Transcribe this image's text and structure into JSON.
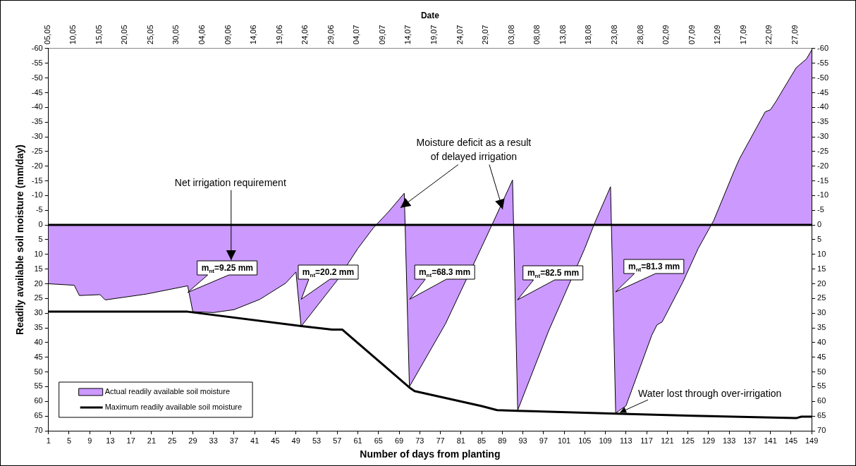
{
  "chart_data": {
    "type": "area",
    "xlabel": "Number of days from planting",
    "ylabel": "Readily available soil moisture (mm/day)",
    "x2label": "Date",
    "series": [
      {
        "name": "Actual readily available soil moisture",
        "color": "#cc99ff",
        "x": [
          1,
          6,
          7,
          11,
          12,
          20,
          28,
          29,
          33,
          37,
          42,
          47,
          49,
          50,
          57,
          61,
          64,
          67,
          70,
          71,
          78,
          81,
          85,
          87,
          91,
          92,
          98,
          101,
          105,
          107,
          110,
          111,
          113,
          118,
          119,
          120,
          124,
          127,
          130,
          134,
          135,
          140,
          141,
          142,
          146,
          148,
          149
        ],
        "values": [
          20,
          20.5,
          24,
          23.7,
          25.5,
          23.5,
          20.7,
          29.5,
          29.8,
          28.8,
          25.3,
          19.8,
          16,
          34.5,
          18.8,
          8,
          1,
          -4.6,
          -10.8,
          55,
          33.6,
          22.4,
          7.5,
          0,
          -15.3,
          63,
          36,
          24,
          8,
          -1,
          -13,
          64,
          61.5,
          37.5,
          34,
          33,
          19.5,
          8,
          -1.5,
          -18.5,
          -22.5,
          -38.5,
          -39.2,
          -41.8,
          -53.5,
          -56.5,
          -59.5
        ]
      },
      {
        "name": "Maximum readily available soil moisture",
        "type": "line",
        "color": "#000000",
        "x": [
          1,
          28,
          50,
          56,
          58,
          71,
          72,
          85,
          88,
          92,
          111,
          126,
          146,
          147,
          149
        ],
        "values": [
          29.5,
          29.5,
          34.4,
          35.6,
          35.6,
          55.3,
          56.5,
          61.6,
          63,
          63.2,
          64.2,
          64.9,
          65.7,
          65.2,
          65.2
        ]
      }
    ],
    "xlim": [
      1,
      149
    ],
    "xticks": [
      1,
      5,
      9,
      13,
      17,
      21,
      25,
      29,
      33,
      37,
      41,
      45,
      49,
      53,
      57,
      61,
      65,
      69,
      73,
      77,
      81,
      85,
      89,
      93,
      97,
      101,
      105,
      109,
      113,
      117,
      121,
      125,
      129,
      133,
      137,
      141,
      145,
      149
    ],
    "x2lim": [
      "--05-05",
      "--09-30"
    ],
    "x2ticks": [
      {
        "value": "--05-05",
        "label": "05,05"
      },
      {
        "value": "--05-10",
        "label": "10,05"
      },
      {
        "value": "--05-15",
        "label": "15,05"
      },
      {
        "value": "--05-20",
        "label": "20,05"
      },
      {
        "value": "--05-25",
        "label": "25,05"
      },
      {
        "value": "--05-30",
        "label": "30,05"
      },
      {
        "value": "--06-04",
        "label": "04,06"
      },
      {
        "value": "--06-09",
        "label": "09,06"
      },
      {
        "value": "--06-14",
        "label": "14,06"
      },
      {
        "value": "--06-19",
        "label": "19,06"
      },
      {
        "value": "--06-24",
        "label": "24,06"
      },
      {
        "value": "--06-29",
        "label": "29,06"
      },
      {
        "value": "--07-04",
        "label": "04,07"
      },
      {
        "value": "--07-09",
        "label": "09,07"
      },
      {
        "value": "--07-14",
        "label": "14,07"
      },
      {
        "value": "--07-19",
        "label": "19,07"
      },
      {
        "value": "--07-24",
        "label": "24,07"
      },
      {
        "value": "--07-29",
        "label": "29,07"
      },
      {
        "value": "--08-03",
        "label": "03,08"
      },
      {
        "value": "--08-08",
        "label": "08,08"
      },
      {
        "value": "--08-13",
        "label": "13,08"
      },
      {
        "value": "--08-18",
        "label": "18,08"
      },
      {
        "value": "--08-23",
        "label": "23,08"
      },
      {
        "value": "--08-28",
        "label": "28,08"
      },
      {
        "value": "--09-02",
        "label": "02,09"
      },
      {
        "value": "--09-07",
        "label": "07,09"
      },
      {
        "value": "--09-12",
        "label": "12,09"
      },
      {
        "value": "--09-17",
        "label": "17,09"
      },
      {
        "value": "--09-22",
        "label": "22,09"
      },
      {
        "value": "--09-27",
        "label": "27,09"
      }
    ],
    "ylim": [
      70,
      -60
    ],
    "yticks": [
      -60,
      -55,
      -50,
      -45,
      -40,
      -35,
      -30,
      -25,
      -20,
      -15,
      -10,
      -5,
      0,
      5,
      10,
      15,
      20,
      25,
      30,
      35,
      40,
      45,
      50,
      55,
      60,
      65,
      70
    ],
    "y2lim": [
      70,
      -60
    ],
    "y2ticks": [
      -60,
      -55,
      -50,
      -45,
      -40,
      -35,
      -30,
      -25,
      -20,
      -15,
      -10,
      -5,
      0,
      5,
      10,
      15,
      20,
      25,
      30,
      35,
      40,
      45,
      50,
      55,
      60,
      65,
      70
    ],
    "ref_lines": [
      {
        "axis": "y",
        "value": 0,
        "color": "#000000"
      }
    ],
    "legend": "bottom left",
    "annotations": [
      "Net irrigation requirement",
      "Moisture deficit as a result\nof delayed irrigation",
      {
        "text": "m$_{nt}$=9.25 mm",
        "x": 28,
        "y": 23
      },
      {
        "text": "m$_{nt}$=20.2 mm",
        "x": 50,
        "y": 25.3
      },
      {
        "text": "m$_{nt}$=68.3 mm",
        "x": 71,
        "y": 25.3
      },
      {
        "text": "m$_{nt}$=82.5 mm",
        "x": 92,
        "y": 25.5
      },
      {
        "text": "m$_{nt}$=81.3 mm",
        "x": 111,
        "y": 22.8
      },
      {
        "text": "Water lost through over-irrigation",
        "x": 111.8,
        "y": 63.8
      }
    ]
  }
}
